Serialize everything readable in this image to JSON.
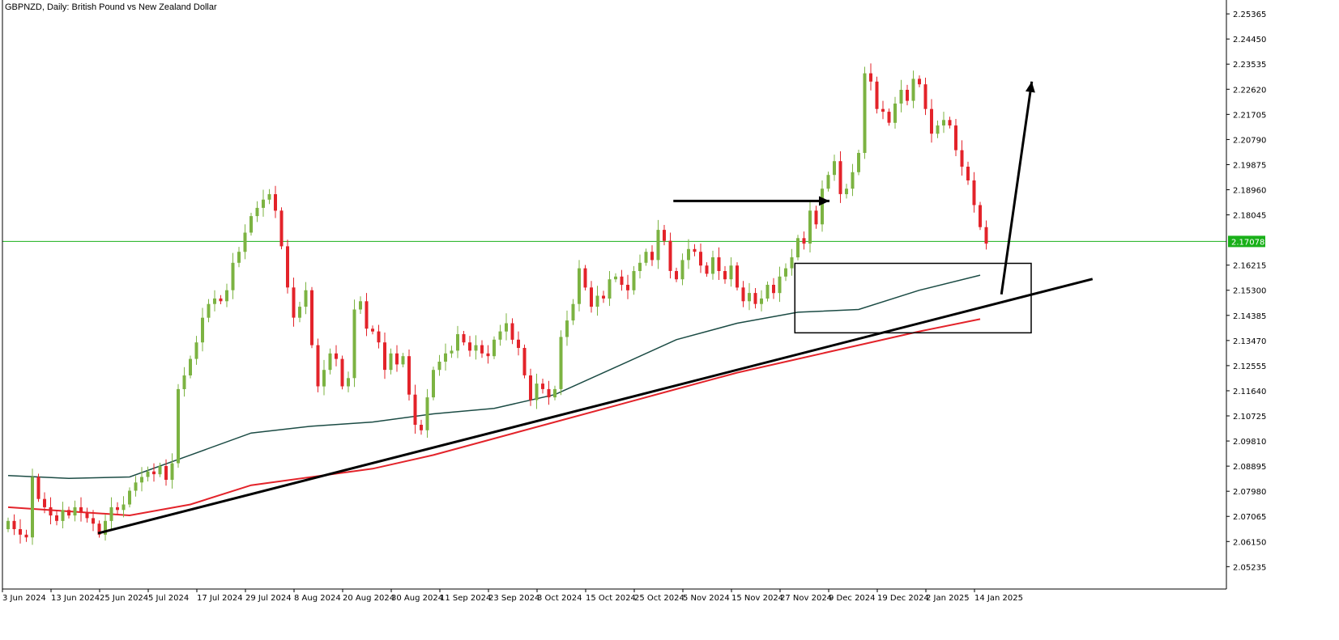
{
  "chart_data": {
    "type": "candlestick",
    "title": "GBPNZD, Daily:  British Pound vs New Zealand Dollar",
    "colors": {
      "bull": "#7cb342",
      "bear": "#e3232a",
      "ma_fast": "#1b4b44",
      "ma_slow": "#e3232a",
      "price_line": "#19b019",
      "price_label_bg": "#19b019",
      "annotation": "#000000",
      "axis": "#000000"
    },
    "y_axis": {
      "position": "right",
      "ylim": [
        2.0442,
        2.2587
      ],
      "ticks": [
        "2.25365",
        "2.24450",
        "2.23535",
        "2.22620",
        "2.21705",
        "2.20790",
        "2.19875",
        "2.18960",
        "2.18045",
        "2.16215",
        "2.15300",
        "2.14385",
        "2.13470",
        "2.12555",
        "2.11640",
        "2.10725",
        "2.09810",
        "2.08895",
        "2.07980",
        "2.07065",
        "2.06150",
        "2.05235"
      ]
    },
    "x_axis": {
      "labels": [
        {
          "text": "3 Jun 2024",
          "idx": 0
        },
        {
          "text": "13 Jun 2024",
          "idx": 8
        },
        {
          "text": "25 Jun 2024",
          "idx": 16
        },
        {
          "text": "5 Jul 2024",
          "idx": 24
        },
        {
          "text": "17 Jul 2024",
          "idx": 32
        },
        {
          "text": "29 Jul 2024",
          "idx": 40
        },
        {
          "text": "8 Aug 2024",
          "idx": 48
        },
        {
          "text": "20 Aug 2024",
          "idx": 56
        },
        {
          "text": "30 Aug 2024",
          "idx": 64
        },
        {
          "text": "11 Sep 2024",
          "idx": 72
        },
        {
          "text": "23 Sep 2024",
          "idx": 80
        },
        {
          "text": "3 Oct 2024",
          "idx": 88
        },
        {
          "text": "15 Oct 2024",
          "idx": 96
        },
        {
          "text": "25 Oct 2024",
          "idx": 104
        },
        {
          "text": "5 Nov 2024",
          "idx": 112
        },
        {
          "text": "15 Nov 2024",
          "idx": 120
        },
        {
          "text": "27 Nov 2024",
          "idx": 128
        },
        {
          "text": "9 Dec 2024",
          "idx": 136
        },
        {
          "text": "19 Dec 2024",
          "idx": 144
        },
        {
          "text": "2 Jan 2025",
          "idx": 152
        },
        {
          "text": "14 Jan 2025",
          "idx": 160
        }
      ]
    },
    "current_price": {
      "value": 2.17078,
      "label": "2.17078"
    },
    "closes": [
      2.069,
      2.066,
      2.064,
      2.063,
      2.085,
      2.077,
      2.074,
      2.071,
      2.069,
      2.073,
      2.071,
      2.074,
      2.072,
      2.07,
      2.068,
      2.064,
      2.069,
      2.074,
      2.073,
      2.075,
      2.08,
      2.083,
      2.085,
      2.087,
      2.086,
      2.089,
      2.084,
      2.09,
      2.117,
      2.122,
      2.128,
      2.134,
      2.143,
      2.148,
      2.15,
      2.149,
      2.153,
      2.163,
      2.167,
      2.174,
      2.18,
      2.183,
      2.186,
      2.188,
      2.182,
      2.169,
      2.154,
      2.143,
      2.147,
      2.153,
      2.133,
      2.118,
      2.124,
      2.13,
      2.128,
      2.118,
      2.121,
      2.146,
      2.149,
      2.139,
      2.138,
      2.134,
      2.124,
      2.13,
      2.126,
      2.129,
      2.115,
      2.104,
      2.102,
      2.114,
      2.124,
      2.127,
      2.13,
      2.131,
      2.137,
      2.134,
      2.131,
      2.133,
      2.13,
      2.129,
      2.135,
      2.138,
      2.141,
      2.135,
      2.132,
      2.122,
      2.113,
      2.119,
      2.117,
      2.114,
      2.117,
      2.136,
      2.142,
      2.148,
      2.161,
      2.154,
      2.147,
      2.151,
      2.15,
      2.157,
      2.158,
      2.155,
      2.153,
      2.16,
      2.163,
      2.167,
      2.164,
      2.175,
      2.171,
      2.16,
      2.157,
      2.164,
      2.168,
      2.167,
      2.162,
      2.159,
      2.165,
      2.16,
      2.157,
      2.162,
      2.154,
      2.149,
      2.152,
      2.148,
      2.15,
      2.155,
      2.152,
      2.158,
      2.161,
      2.165,
      2.172,
      2.17,
      2.182,
      2.177,
      2.19,
      2.195,
      2.2,
      2.188,
      2.19,
      2.196,
      2.203,
      2.232,
      2.229,
      2.219,
      2.218,
      2.214,
      2.221,
      2.226,
      2.222,
      2.23,
      2.228,
      2.219,
      2.21,
      2.213,
      2.215,
      2.213,
      2.204,
      2.198,
      2.193,
      2.184,
      2.176,
      2.17
    ],
    "ma_fast": [
      {
        "i": 0,
        "v": 2.0855
      },
      {
        "i": 10,
        "v": 2.0845
      },
      {
        "i": 20,
        "v": 2.085
      },
      {
        "i": 30,
        "v": 2.093
      },
      {
        "i": 40,
        "v": 2.101
      },
      {
        "i": 50,
        "v": 2.1035
      },
      {
        "i": 60,
        "v": 2.105
      },
      {
        "i": 70,
        "v": 2.108
      },
      {
        "i": 80,
        "v": 2.11
      },
      {
        "i": 90,
        "v": 2.115
      },
      {
        "i": 100,
        "v": 2.125
      },
      {
        "i": 110,
        "v": 2.135
      },
      {
        "i": 120,
        "v": 2.141
      },
      {
        "i": 130,
        "v": 2.145
      },
      {
        "i": 140,
        "v": 2.146
      },
      {
        "i": 150,
        "v": 2.153
      },
      {
        "i": 160,
        "v": 2.1585
      }
    ],
    "ma_slow": [
      {
        "i": 0,
        "v": 2.074
      },
      {
        "i": 10,
        "v": 2.0725
      },
      {
        "i": 20,
        "v": 2.071
      },
      {
        "i": 30,
        "v": 2.075
      },
      {
        "i": 40,
        "v": 2.082
      },
      {
        "i": 50,
        "v": 2.085
      },
      {
        "i": 60,
        "v": 2.088
      },
      {
        "i": 70,
        "v": 2.093
      },
      {
        "i": 80,
        "v": 2.099
      },
      {
        "i": 90,
        "v": 2.105
      },
      {
        "i": 100,
        "v": 2.111
      },
      {
        "i": 110,
        "v": 2.117
      },
      {
        "i": 120,
        "v": 2.123
      },
      {
        "i": 130,
        "v": 2.128
      },
      {
        "i": 140,
        "v": 2.133
      },
      {
        "i": 150,
        "v": 2.138
      },
      {
        "i": 160,
        "v": 2.1425
      }
    ],
    "annotations": {
      "trendline": {
        "from": {
          "i": 14.8,
          "v": 2.0645
        },
        "to": {
          "i": 178.5,
          "v": 2.1571
        }
      },
      "box": {
        "from": {
          "i": 129.5,
          "v": 2.1628
        },
        "to": {
          "i": 168.4,
          "v": 2.1375
        }
      },
      "resistance_arrow": {
        "from": {
          "i": 109.5,
          "v": 2.1855
        },
        "to": {
          "i": 135.2,
          "v": 2.1855
        }
      },
      "up_arrow": {
        "from": {
          "i": 163.5,
          "v": 2.1515
        },
        "to": {
          "i": 168.5,
          "v": 2.229
        }
      }
    }
  }
}
